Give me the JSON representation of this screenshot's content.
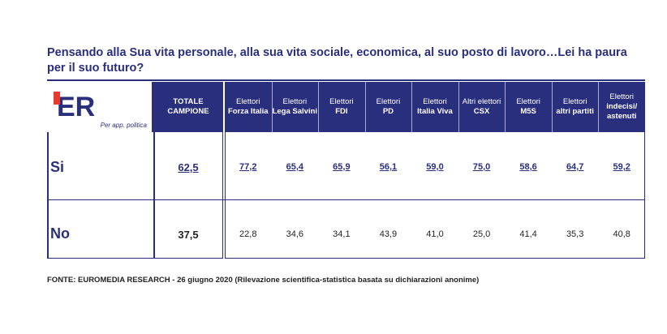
{
  "title": "Pensando alla Sua vita personale, alla sua vita sociale, economica, al suo posto di lavoro…Lei ha paura per il suo futuro?",
  "logo": {
    "mark": "ER",
    "subtitle": "Per app. politica"
  },
  "source": "FONTE: EUROMEDIA RESEARCH - 26 giugno 2020 (Rilevazione scientifica-statistica basata su dichiarazioni anonime)",
  "colors": {
    "navy": "#2a2f7d",
    "red": "#e63a2e"
  },
  "chart_data": {
    "type": "table",
    "columns": [
      {
        "label_top": "TOTALE",
        "label_bold": "CAMPIONE"
      },
      {
        "label_top": "Elettori",
        "label_bold": "Forza Italia"
      },
      {
        "label_top": "Elettori",
        "label_bold": "Lega Salvini"
      },
      {
        "label_top": "Elettori",
        "label_bold": "FDI"
      },
      {
        "label_top": "Elettori",
        "label_bold": "PD"
      },
      {
        "label_top": "Elettori",
        "label_bold": "Italia Viva"
      },
      {
        "label_top": "Altri elettori",
        "label_bold": "CSX"
      },
      {
        "label_top": "Elettori",
        "label_bold": "M5S"
      },
      {
        "label_top": "Elettori",
        "label_bold": "altri partiti"
      },
      {
        "label_top": "Elettori",
        "label_bold": "indecisi/ astenuti"
      }
    ],
    "rows": [
      {
        "label": "Si",
        "values": [
          "62,5",
          "77,2",
          "65,4",
          "65,9",
          "56,1",
          "59,0",
          "75,0",
          "58,6",
          "64,7",
          "59,2"
        ]
      },
      {
        "label": "No",
        "values": [
          "37,5",
          "22,8",
          "34,6",
          "34,1",
          "43,9",
          "41,0",
          "25,0",
          "41,4",
          "35,3",
          "40,8"
        ]
      }
    ]
  }
}
